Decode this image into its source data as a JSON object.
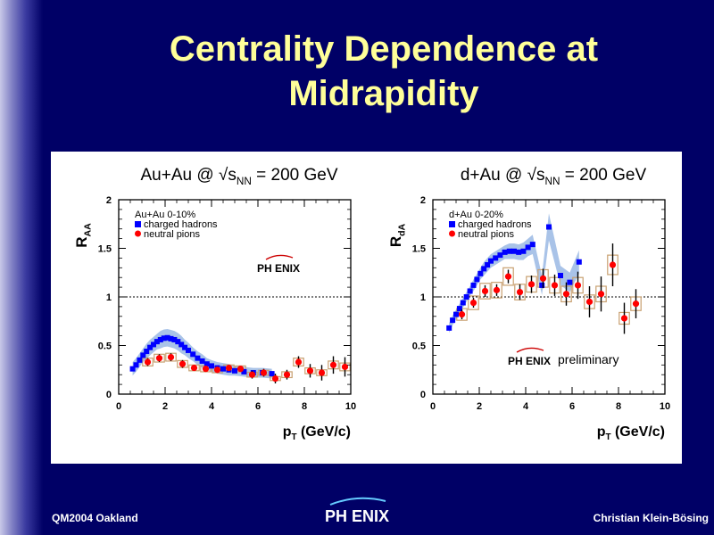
{
  "slide": {
    "title_line1": "Centrality Dependence at",
    "title_line2": "Midrapidity",
    "footer_left": "QM2004 Oakland",
    "footer_right": "Christian Klein-Bösing",
    "footer_logo": "PH ENIX"
  },
  "colors": {
    "background": "#000066",
    "title": "#ffff99",
    "charged": "#0000ff",
    "neutral": "#ff0000",
    "charged_band": "#a9c3e8",
    "neutral_box": "#c8a070"
  },
  "chart_data": [
    {
      "type": "scatter",
      "title": "Au+Au @ √sNN = 200 GeV",
      "title_parts": {
        "pre": "Au+Au @ √s",
        "sub": "NN",
        "post": " = 200 GeV"
      },
      "ylabel": "R",
      "ylabel_sub": "AA",
      "xlabel": "p",
      "xlabel_sub": "T",
      "xlabel_post": " (GeV/c)",
      "xlim": [
        0,
        10
      ],
      "ylim": [
        0,
        2
      ],
      "xticks": [
        "0",
        "2",
        "4",
        "6",
        "8",
        "10"
      ],
      "yticks": [
        "0",
        "0.5",
        "1",
        "1.5",
        "2"
      ],
      "reference_line": 1,
      "legend_header": "Au+Au 0-10%",
      "legend": [
        "charged hadrons",
        "neutral pions"
      ],
      "logo": "PH ENIX",
      "annotation": "",
      "charged_hadrons": {
        "x": [
          0.6,
          0.75,
          0.9,
          1.05,
          1.2,
          1.35,
          1.5,
          1.65,
          1.8,
          1.95,
          2.1,
          2.25,
          2.4,
          2.55,
          2.7,
          2.85,
          3.0,
          3.2,
          3.4,
          3.6,
          3.8,
          4.0,
          4.25,
          4.5,
          4.75,
          5.0,
          5.4,
          5.8,
          6.2,
          6.6
        ],
        "y": [
          0.26,
          0.3,
          0.35,
          0.4,
          0.44,
          0.48,
          0.51,
          0.54,
          0.56,
          0.575,
          0.58,
          0.57,
          0.56,
          0.54,
          0.51,
          0.48,
          0.45,
          0.41,
          0.37,
          0.34,
          0.31,
          0.29,
          0.27,
          0.26,
          0.25,
          0.24,
          0.23,
          0.22,
          0.22,
          0.21
        ],
        "band": [
          0.07,
          0.07,
          0.07,
          0.07,
          0.08,
          0.08,
          0.08,
          0.08,
          0.09,
          0.09,
          0.09,
          0.09,
          0.09,
          0.09,
          0.09,
          0.08,
          0.08,
          0.07,
          0.07,
          0.07,
          0.06,
          0.06,
          0.06,
          0.06,
          0.06,
          0.05,
          0.05,
          0.05,
          0.05,
          0.05
        ]
      },
      "neutral_pions": {
        "x": [
          1.25,
          1.75,
          2.25,
          2.75,
          3.25,
          3.75,
          4.25,
          4.75,
          5.25,
          5.75,
          6.25,
          6.75,
          7.25,
          7.75,
          8.25,
          8.75,
          9.25,
          9.75
        ],
        "y": [
          0.33,
          0.37,
          0.38,
          0.31,
          0.27,
          0.26,
          0.25,
          0.27,
          0.26,
          0.2,
          0.22,
          0.16,
          0.2,
          0.33,
          0.24,
          0.22,
          0.3,
          0.28
        ],
        "err": [
          0.04,
          0.04,
          0.04,
          0.04,
          0.03,
          0.03,
          0.03,
          0.03,
          0.03,
          0.04,
          0.04,
          0.05,
          0.05,
          0.06,
          0.07,
          0.08,
          0.09,
          0.1
        ],
        "sys": [
          0.04,
          0.04,
          0.04,
          0.035,
          0.03,
          0.03,
          0.03,
          0.03,
          0.03,
          0.025,
          0.025,
          0.02,
          0.03,
          0.04,
          0.03,
          0.03,
          0.04,
          0.04
        ]
      }
    },
    {
      "type": "scatter",
      "title": "d+Au @ √sNN = 200 GeV",
      "title_parts": {
        "pre": "d+Au @ √s",
        "sub": "NN",
        "post": " = 200 GeV"
      },
      "ylabel": "R",
      "ylabel_sub": "dA",
      "xlabel": "p",
      "xlabel_sub": "T",
      "xlabel_post": " (GeV/c)",
      "xlim": [
        0,
        10
      ],
      "ylim": [
        0,
        2
      ],
      "xticks": [
        "0",
        "2",
        "4",
        "6",
        "8",
        "10"
      ],
      "yticks": [
        "0",
        "0.5",
        "1",
        "1.5",
        "2"
      ],
      "reference_line": 1,
      "legend_header": "d+Au 0-20%",
      "legend": [
        "charged hadrons",
        "neutral pions"
      ],
      "logo": "PH ENIX",
      "annotation": "preliminary",
      "charged_hadrons": {
        "x": [
          0.7,
          0.85,
          1.0,
          1.15,
          1.3,
          1.45,
          1.6,
          1.75,
          1.9,
          2.05,
          2.2,
          2.35,
          2.5,
          2.7,
          2.9,
          3.1,
          3.3,
          3.5,
          3.7,
          3.9,
          4.1,
          4.3,
          4.7,
          5.0,
          5.5,
          5.9,
          6.3
        ],
        "y": [
          0.68,
          0.76,
          0.82,
          0.88,
          0.94,
          1.0,
          1.06,
          1.12,
          1.18,
          1.24,
          1.29,
          1.33,
          1.37,
          1.4,
          1.43,
          1.46,
          1.47,
          1.47,
          1.46,
          1.47,
          1.51,
          1.54,
          1.12,
          1.72,
          1.22,
          1.15,
          1.36
        ],
        "band": [
          0.05,
          0.05,
          0.05,
          0.05,
          0.05,
          0.05,
          0.05,
          0.06,
          0.06,
          0.06,
          0.07,
          0.07,
          0.07,
          0.07,
          0.07,
          0.07,
          0.08,
          0.08,
          0.08,
          0.09,
          0.09,
          0.1,
          0.1,
          0.14,
          0.1,
          0.1,
          0.12
        ]
      },
      "neutral_pions": {
        "x": [
          1.25,
          1.75,
          2.25,
          2.75,
          3.25,
          3.75,
          4.25,
          4.75,
          5.25,
          5.75,
          6.25,
          6.75,
          7.25,
          7.75,
          8.25,
          8.75
        ],
        "y": [
          0.82,
          0.94,
          1.06,
          1.07,
          1.21,
          1.05,
          1.13,
          1.19,
          1.12,
          1.03,
          1.12,
          0.95,
          1.03,
          1.33,
          0.78,
          0.93
        ],
        "err": [
          0.05,
          0.05,
          0.06,
          0.06,
          0.07,
          0.08,
          0.09,
          0.1,
          0.11,
          0.12,
          0.14,
          0.16,
          0.18,
          0.22,
          0.16,
          0.15
        ],
        "sys": [
          0.06,
          0.07,
          0.08,
          0.08,
          0.09,
          0.08,
          0.08,
          0.09,
          0.08,
          0.08,
          0.08,
          0.07,
          0.08,
          0.1,
          0.06,
          0.07
        ]
      }
    }
  ]
}
